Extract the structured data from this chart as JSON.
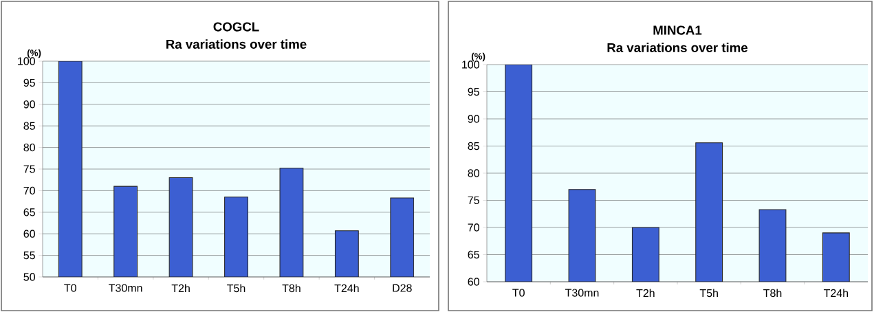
{
  "chart_data": [
    {
      "type": "bar",
      "title": "COGCL",
      "subtitle": "Ra variations over time",
      "ylabel": "(%)",
      "categories": [
        "T0",
        "T30mn",
        "T2h",
        "T5h",
        "T8h",
        "T24h",
        "D28"
      ],
      "values": [
        100,
        71,
        73,
        68.5,
        75.2,
        60.7,
        68.3
      ],
      "color": "#3c5fd2",
      "ylim": [
        50,
        100
      ],
      "yticks": [
        50,
        55,
        60,
        65,
        70,
        75,
        80,
        85,
        90,
        95,
        100
      ],
      "grid": "y"
    },
    {
      "type": "bar",
      "title": "MINCA1",
      "subtitle": "Ra variations over time",
      "ylabel": "(%)",
      "categories": [
        "T0",
        "T30mn",
        "T2h",
        "T5h",
        "T8h",
        "T24h"
      ],
      "values": [
        100,
        77,
        70,
        85.6,
        73.3,
        69
      ],
      "color": "#3c5fd2",
      "ylim": [
        60,
        100
      ],
      "yticks": [
        60,
        65,
        70,
        75,
        80,
        85,
        90,
        95,
        100
      ],
      "grid": "y"
    }
  ]
}
